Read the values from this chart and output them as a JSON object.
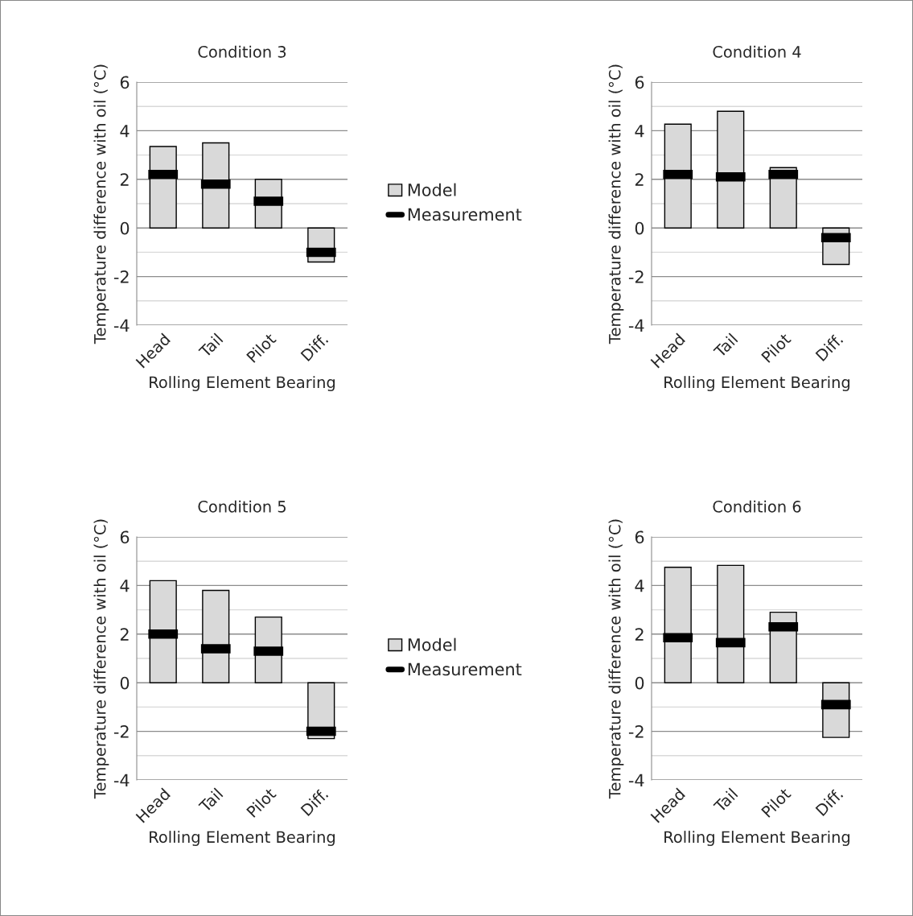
{
  "chart_data": [
    {
      "type": "bar",
      "title": "Condition 3",
      "xlabel": "Rolling Element Bearing",
      "ylabel": "Temperature difference with oil (°C)",
      "categories": [
        "Head",
        "Tail",
        "Pilot",
        "Diff."
      ],
      "ylim": [
        -4,
        6
      ],
      "yticks": [
        -4,
        -2,
        0,
        2,
        4,
        6
      ],
      "grid": "y",
      "series": [
        {
          "color": "#d9d9d9",
          "values": [
            3.35,
            3.5,
            2.0,
            -1.4
          ]
        },
        {
          "type": "scatter",
          "color": "#000000",
          "values": [
            2.2,
            1.8,
            1.1,
            -1.0
          ]
        }
      ]
    },
    {
      "type": "bar",
      "title": "Condition 4",
      "xlabel": "Rolling Element Bearing",
      "ylabel": "Temperature difference with oil (°C)",
      "categories": [
        "Head",
        "Tail",
        "Pilot",
        "Diff."
      ],
      "ylim": [
        -4,
        6
      ],
      "yticks": [
        -4,
        -2,
        0,
        2,
        4,
        6
      ],
      "grid": "y",
      "legend": "left",
      "series": [
        {
          "name": "Model",
          "color": "#d9d9d9",
          "values": [
            4.27,
            4.8,
            2.48,
            -1.5
          ]
        },
        {
          "name": "Measurement",
          "type": "scatter",
          "color": "#000000",
          "values": [
            2.2,
            2.1,
            2.2,
            -0.4
          ]
        }
      ]
    },
    {
      "type": "bar",
      "title": "Condition 5",
      "xlabel": "Rolling Element Bearing",
      "ylabel": "Temperature difference with oil (°C)",
      "categories": [
        "Head",
        "Tail",
        "Pilot",
        "Diff."
      ],
      "ylim": [
        -4,
        6
      ],
      "yticks": [
        -4,
        -2,
        0,
        2,
        4,
        6
      ],
      "grid": "y",
      "series": [
        {
          "color": "#d9d9d9",
          "values": [
            4.2,
            3.8,
            2.7,
            -2.3
          ]
        },
        {
          "type": "scatter",
          "color": "#000000",
          "values": [
            2.0,
            1.4,
            1.3,
            -2.0
          ]
        }
      ]
    },
    {
      "type": "bar",
      "title": "Condition 6",
      "xlabel": "Rolling Element Bearing",
      "ylabel": "Temperature difference with oil (°C)",
      "categories": [
        "Head",
        "Tail",
        "Pilot",
        "Diff."
      ],
      "ylim": [
        -4,
        6
      ],
      "yticks": [
        -4,
        -2,
        0,
        2,
        4,
        6
      ],
      "grid": "y",
      "legend": "left",
      "series": [
        {
          "name": "Model",
          "color": "#d9d9d9",
          "values": [
            4.75,
            4.83,
            2.9,
            -2.25
          ]
        },
        {
          "name": "Measurement",
          "type": "scatter",
          "color": "#000000",
          "values": [
            1.85,
            1.65,
            2.3,
            -0.9
          ]
        }
      ]
    }
  ]
}
